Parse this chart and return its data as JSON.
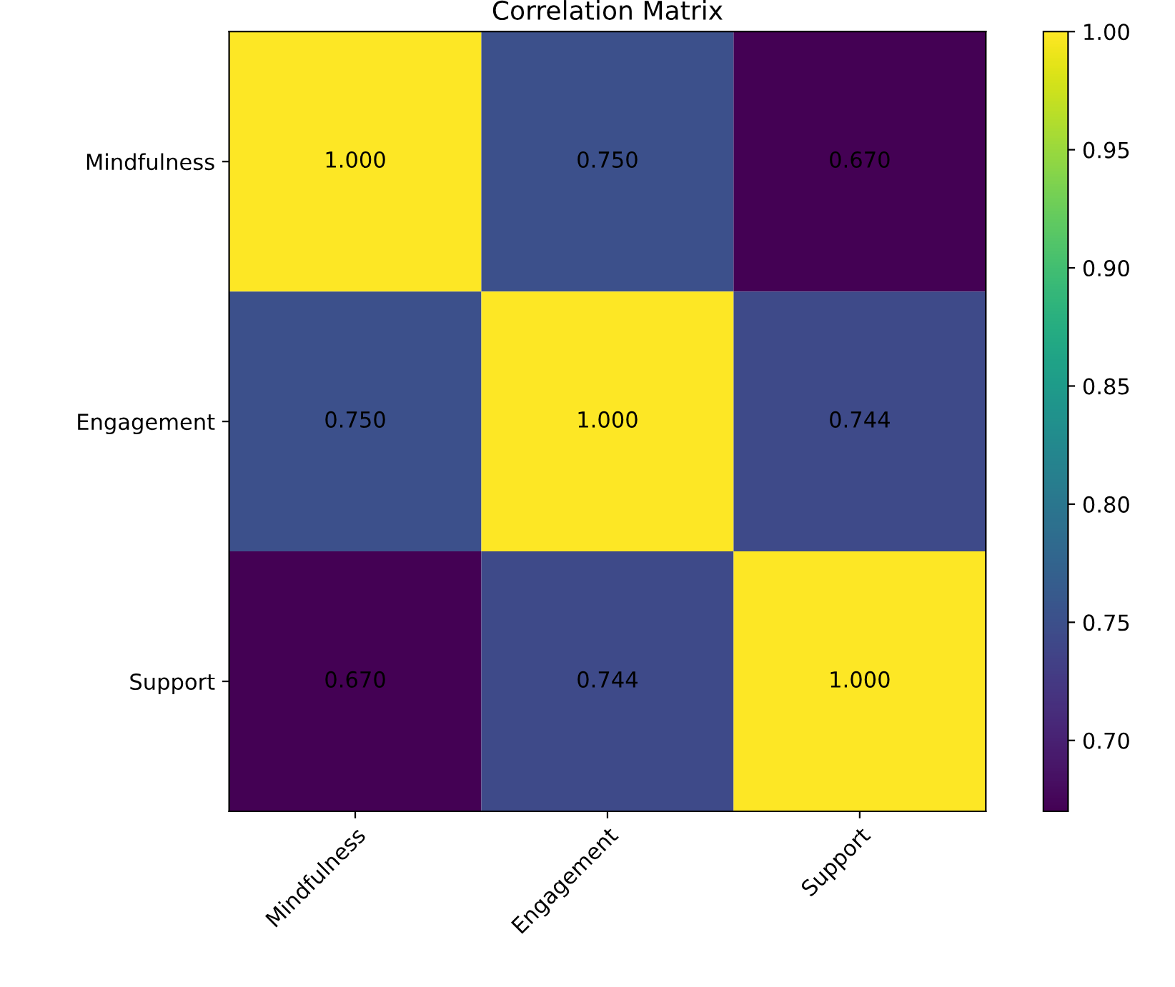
{
  "chart_data": {
    "type": "heatmap",
    "title": "Correlation Matrix",
    "categories": [
      "Mindfulness",
      "Engagement",
      "Support"
    ],
    "y_categories": [
      "Mindfulness",
      "Engagement",
      "Support"
    ],
    "cells": [
      [
        1.0,
        0.75,
        0.67
      ],
      [
        0.75,
        1.0,
        0.744
      ],
      [
        0.67,
        0.744,
        1.0
      ]
    ],
    "cell_labels": [
      [
        "1.000",
        "0.750",
        "0.670"
      ],
      [
        "0.750",
        "1.000",
        "0.744"
      ],
      [
        "0.670",
        "0.744",
        "1.000"
      ]
    ],
    "clim": [
      0.67,
      1.0
    ],
    "cticks": [
      {
        "value": 0.7,
        "label": "0.70"
      },
      {
        "value": 0.75,
        "label": "0.75"
      },
      {
        "value": 0.8,
        "label": "0.80"
      },
      {
        "value": 0.85,
        "label": "0.85"
      },
      {
        "value": 0.9,
        "label": "0.90"
      },
      {
        "value": 0.95,
        "label": "0.95"
      },
      {
        "value": 1.0,
        "label": "1.00"
      }
    ],
    "grid": false
  }
}
